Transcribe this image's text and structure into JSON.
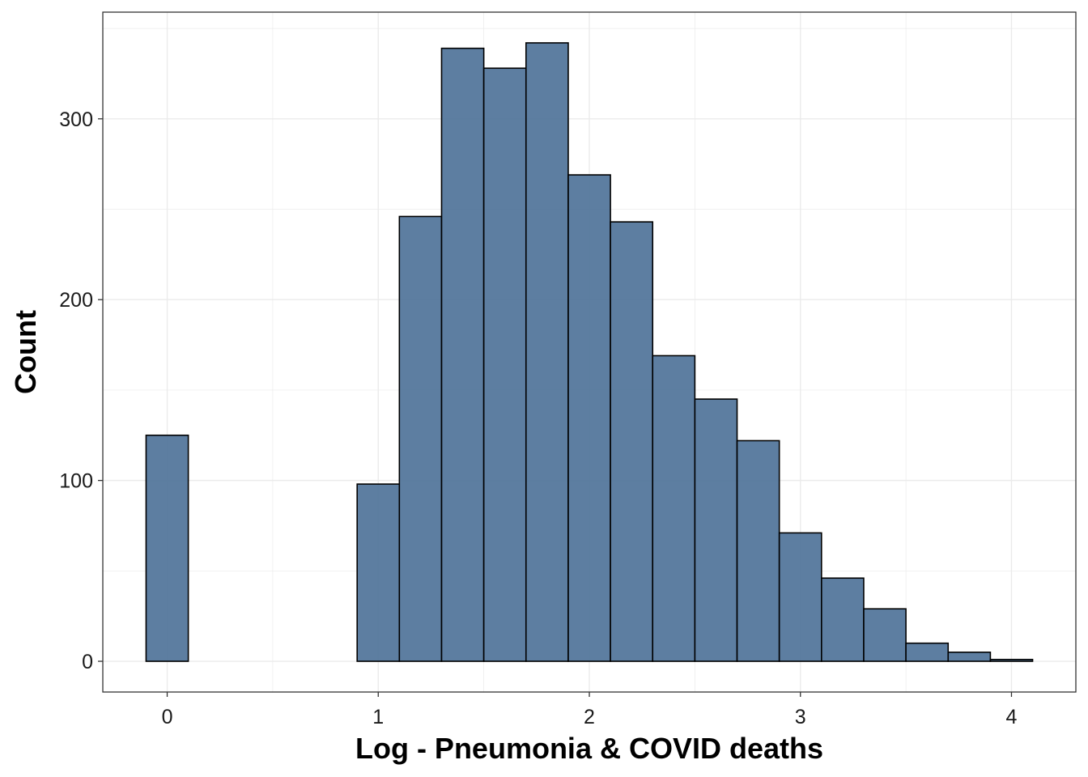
{
  "chart_data": {
    "type": "bar",
    "subtype": "histogram",
    "xlabel": "Log - Pneumonia & COVID deaths",
    "ylabel": "Count",
    "bin_width": 0.2,
    "bins": [
      {
        "start": -0.1,
        "end": 0.1,
        "count": 125
      },
      {
        "start": 0.1,
        "end": 0.3,
        "count": 0
      },
      {
        "start": 0.3,
        "end": 0.5,
        "count": 0
      },
      {
        "start": 0.5,
        "end": 0.7,
        "count": 0
      },
      {
        "start": 0.7,
        "end": 0.9,
        "count": 0
      },
      {
        "start": 0.9,
        "end": 1.1,
        "count": 98
      },
      {
        "start": 1.1,
        "end": 1.3,
        "count": 246
      },
      {
        "start": 1.3,
        "end": 1.5,
        "count": 339
      },
      {
        "start": 1.5,
        "end": 1.7,
        "count": 328
      },
      {
        "start": 1.7,
        "end": 1.9,
        "count": 342
      },
      {
        "start": 1.9,
        "end": 2.1,
        "count": 269
      },
      {
        "start": 2.1,
        "end": 2.3,
        "count": 243
      },
      {
        "start": 2.3,
        "end": 2.5,
        "count": 169
      },
      {
        "start": 2.5,
        "end": 2.7,
        "count": 145
      },
      {
        "start": 2.7,
        "end": 2.9,
        "count": 122
      },
      {
        "start": 2.9,
        "end": 3.1,
        "count": 71
      },
      {
        "start": 3.1,
        "end": 3.3,
        "count": 46
      },
      {
        "start": 3.3,
        "end": 3.5,
        "count": 29
      },
      {
        "start": 3.5,
        "end": 3.7,
        "count": 10
      },
      {
        "start": 3.7,
        "end": 3.9,
        "count": 5
      },
      {
        "start": 3.9,
        "end": 4.1,
        "count": 1
      }
    ],
    "xlim": [
      -0.305,
      4.305
    ],
    "ylim": [
      -17,
      359
    ],
    "x_ticks": [
      0,
      1,
      2,
      3,
      4
    ],
    "x_tick_labels": [
      "0",
      "1",
      "2",
      "3",
      "4"
    ],
    "y_ticks": [
      0,
      100,
      200,
      300
    ],
    "y_tick_labels": [
      "0",
      "100",
      "200",
      "300"
    ],
    "grid": true,
    "legend": "none",
    "bar_fill": "#4f7399",
    "bar_outline": "#000000",
    "grid_color": "#ebebeb"
  }
}
